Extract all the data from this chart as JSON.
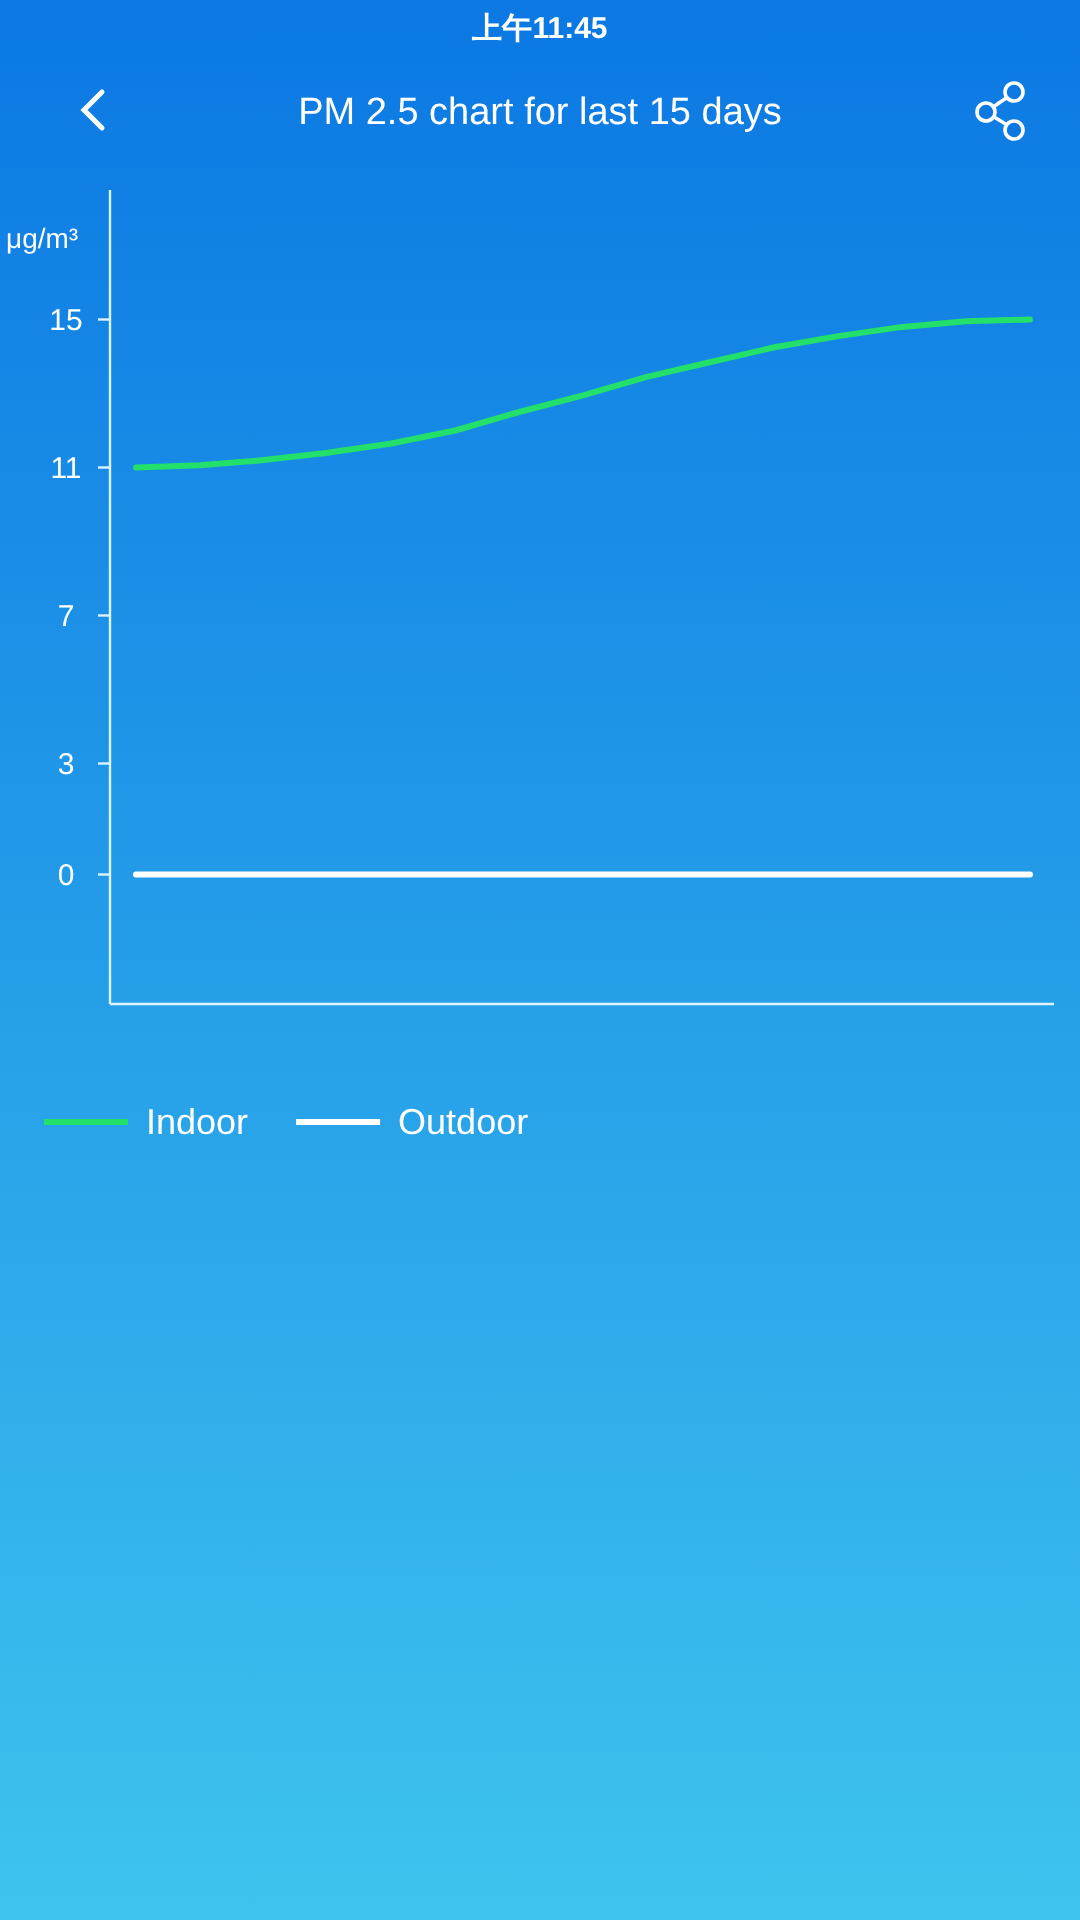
{
  "chart_data": {
    "type": "line",
    "title": "PM 2.5 chart for last 15 days",
    "ylabel": "μg/m³",
    "annotations": [
      "上午11:45"
    ],
    "categories": [
      null,
      null,
      null,
      null,
      null,
      null,
      null,
      null,
      null,
      null,
      null,
      null,
      null,
      null,
      null
    ],
    "series": [
      {
        "name": "Indoor",
        "color": "#22e06a",
        "values": [
          11.0,
          11.06,
          11.2,
          11.4,
          11.65,
          12.0,
          12.5,
          12.95,
          13.45,
          13.85,
          14.25,
          14.55,
          14.8,
          14.95,
          15.0
        ]
      },
      {
        "name": "Outdoor",
        "color": "#ffffff",
        "values": [
          0,
          0,
          0,
          0,
          0,
          0,
          0,
          0,
          0,
          0,
          0,
          0,
          0,
          0,
          0
        ]
      }
    ],
    "ylim": [
      -3.5,
      18.5
    ],
    "yticks": [
      0,
      3,
      7,
      11,
      15
    ],
    "grid": false,
    "legend": "bottom",
    "marker": "none",
    "line_style": "solid"
  }
}
